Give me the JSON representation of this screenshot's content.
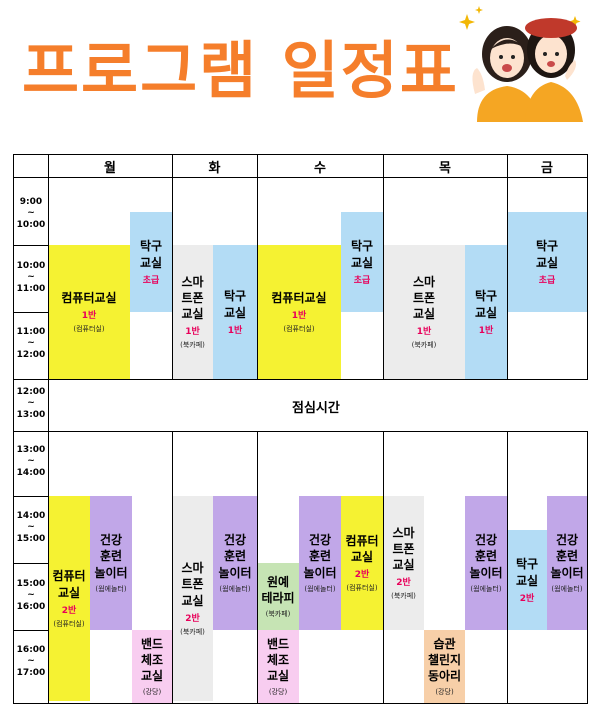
{
  "title": "프로그램 일정표",
  "days": [
    "월",
    "화",
    "수",
    "목",
    "금"
  ],
  "time_slots": [
    {
      "start": "9:00",
      "sep": "~",
      "end": "10:00"
    },
    {
      "start": "10:00",
      "sep": "~",
      "end": "11:00"
    },
    {
      "start": "11:00",
      "sep": "~",
      "end": "12:00"
    },
    {
      "start": "12:00",
      "sep": "~",
      "end": "13:00"
    },
    {
      "start": "13:00",
      "sep": "~",
      "end": "14:00"
    },
    {
      "start": "14:00",
      "sep": "~",
      "end": "15:00"
    },
    {
      "start": "15:00",
      "sep": "~",
      "end": "16:00"
    },
    {
      "start": "16:00",
      "sep": "~",
      "end": "17:00"
    }
  ],
  "lunch": "점심시간",
  "colors": {
    "title": "#f57e2b",
    "computer": "#f5f232",
    "tabletennis": "#b3dcf5",
    "smartphone": "#ececec",
    "health": "#c1a7e8",
    "band": "#f8cdf0",
    "gardening": "#c6e4b4",
    "habit": "#f7cfa8",
    "level_text": "#e8005a"
  },
  "programs": [
    {
      "name": "컴퓨터교실",
      "level": "1반",
      "room": "(컴퓨터실)",
      "color": "computer"
    },
    {
      "name": "탁구\n교실",
      "level": "초급",
      "room": "",
      "color": "tabletennis"
    },
    {
      "name": "스마\n트폰\n교실",
      "level": "1반",
      "room": "(북카페)",
      "color": "smartphone"
    },
    {
      "name": "탁구\n교실",
      "level": "1반",
      "room": "",
      "color": "tabletennis"
    },
    {
      "name": "컴퓨터교실",
      "level": "1반",
      "room": "(컴퓨터실)",
      "color": "computer"
    },
    {
      "name": "탁구\n교실",
      "level": "초급",
      "room": "",
      "color": "tabletennis"
    },
    {
      "name": "스마\n트폰\n교실",
      "level": "1반",
      "room": "(북카페)",
      "color": "smartphone"
    },
    {
      "name": "탁구\n교실",
      "level": "1반",
      "room": "",
      "color": "tabletennis"
    },
    {
      "name": "탁구\n교실",
      "level": "초급",
      "room": "",
      "color": "tabletennis"
    },
    {
      "name": "컴퓨터\n교실",
      "level": "2반",
      "room": "(컴퓨터실)",
      "color": "computer"
    },
    {
      "name": "건강\n훈련\n놀이터",
      "level": "",
      "room": "(웜에놀터)",
      "color": "health"
    },
    {
      "name": "밴드\n체조\n교실",
      "level": "",
      "room": "(강당)",
      "color": "band"
    },
    {
      "name": "스마\n트폰\n교실",
      "level": "2반",
      "room": "(북카페)",
      "color": "smartphone"
    },
    {
      "name": "건강\n훈련\n놀이터",
      "level": "",
      "room": "(웜에놀터)",
      "color": "health"
    },
    {
      "name": "원예\n테라피",
      "level": "",
      "room": "(북카페)",
      "color": "gardening"
    },
    {
      "name": "밴드\n체조\n교실",
      "level": "",
      "room": "(강당)",
      "color": "band"
    },
    {
      "name": "건강\n훈련\n놀이터",
      "level": "",
      "room": "(웜에놀터)",
      "color": "health"
    },
    {
      "name": "컴퓨터\n교실",
      "level": "2반",
      "room": "(컴퓨터실)",
      "color": "computer"
    },
    {
      "name": "스마\n트폰\n교실",
      "level": "2반",
      "room": "(북카페)",
      "color": "smartphone"
    },
    {
      "name": "습관\n챌린지\n동아리",
      "level": "",
      "room": "(강당)",
      "color": "habit"
    },
    {
      "name": "건강\n훈련\n놀이터",
      "level": "",
      "room": "(웜에놀터)",
      "color": "health"
    },
    {
      "name": "탁구\n교실",
      "level": "2반",
      "room": "",
      "color": "tabletennis"
    },
    {
      "name": "건강\n훈련\n놀이터",
      "level": "",
      "room": "(웜에놀터)",
      "color": "health"
    }
  ]
}
